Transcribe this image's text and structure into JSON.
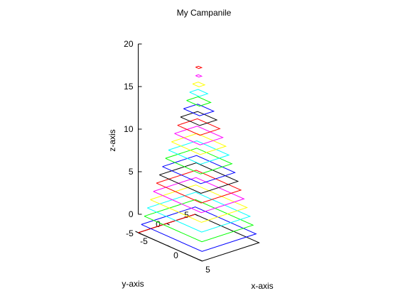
{
  "chart_data": {
    "type": "line3d",
    "title": "My Campanile",
    "xlabel": "x-axis",
    "ylabel": "y-axis",
    "zlabel": "z-axis",
    "xlim": [
      -5,
      5
    ],
    "ylim": [
      -5,
      5
    ],
    "zlim": [
      0,
      20
    ],
    "x_ticks": [
      -5,
      0,
      5
    ],
    "y_ticks": [
      -5,
      0,
      5
    ],
    "z_ticks": [
      0,
      5,
      10,
      15,
      20
    ],
    "grid": false,
    "legend": "none",
    "color_cycle": [
      "#000000",
      "#0000ff",
      "#00ff00",
      "#00ffff",
      "#ffff00",
      "#ff00ff",
      "#ff0000"
    ],
    "series": [
      {
        "z": 0,
        "half_width": 5.0,
        "color": "#000000"
      },
      {
        "z": 1,
        "half_width": 4.75,
        "color": "#0000ff"
      },
      {
        "z": 2,
        "half_width": 4.5,
        "color": "#00ff00"
      },
      {
        "z": 3,
        "half_width": 4.25,
        "color": "#00ffff"
      },
      {
        "z": 4,
        "half_width": 4.0,
        "color": "#ffff00"
      },
      {
        "z": 5,
        "half_width": 3.75,
        "color": "#ff00ff"
      },
      {
        "z": 6,
        "half_width": 3.5,
        "color": "#ff0000"
      },
      {
        "z": 7,
        "half_width": 3.25,
        "color": "#000000"
      },
      {
        "z": 8,
        "half_width": 3.0,
        "color": "#0000ff"
      },
      {
        "z": 9,
        "half_width": 2.75,
        "color": "#00ff00"
      },
      {
        "z": 10,
        "half_width": 2.5,
        "color": "#00ffff"
      },
      {
        "z": 11,
        "half_width": 2.25,
        "color": "#ffff00"
      },
      {
        "z": 12,
        "half_width": 2.0,
        "color": "#ff00ff"
      },
      {
        "z": 13,
        "half_width": 1.75,
        "color": "#ff0000"
      },
      {
        "z": 14,
        "half_width": 1.5,
        "color": "#000000"
      },
      {
        "z": 15,
        "half_width": 1.25,
        "color": "#0000ff"
      },
      {
        "z": 16,
        "half_width": 1.0,
        "color": "#00ff00"
      },
      {
        "z": 17,
        "half_width": 0.75,
        "color": "#00ffff"
      },
      {
        "z": 18,
        "half_width": 0.5,
        "color": "#ffff00"
      },
      {
        "z": 19,
        "half_width": 0.25,
        "color": "#ff00ff"
      },
      {
        "z": 20,
        "half_width": 0.25,
        "color": "#ff0000"
      }
    ],
    "view_hint": "3d-oblique"
  }
}
